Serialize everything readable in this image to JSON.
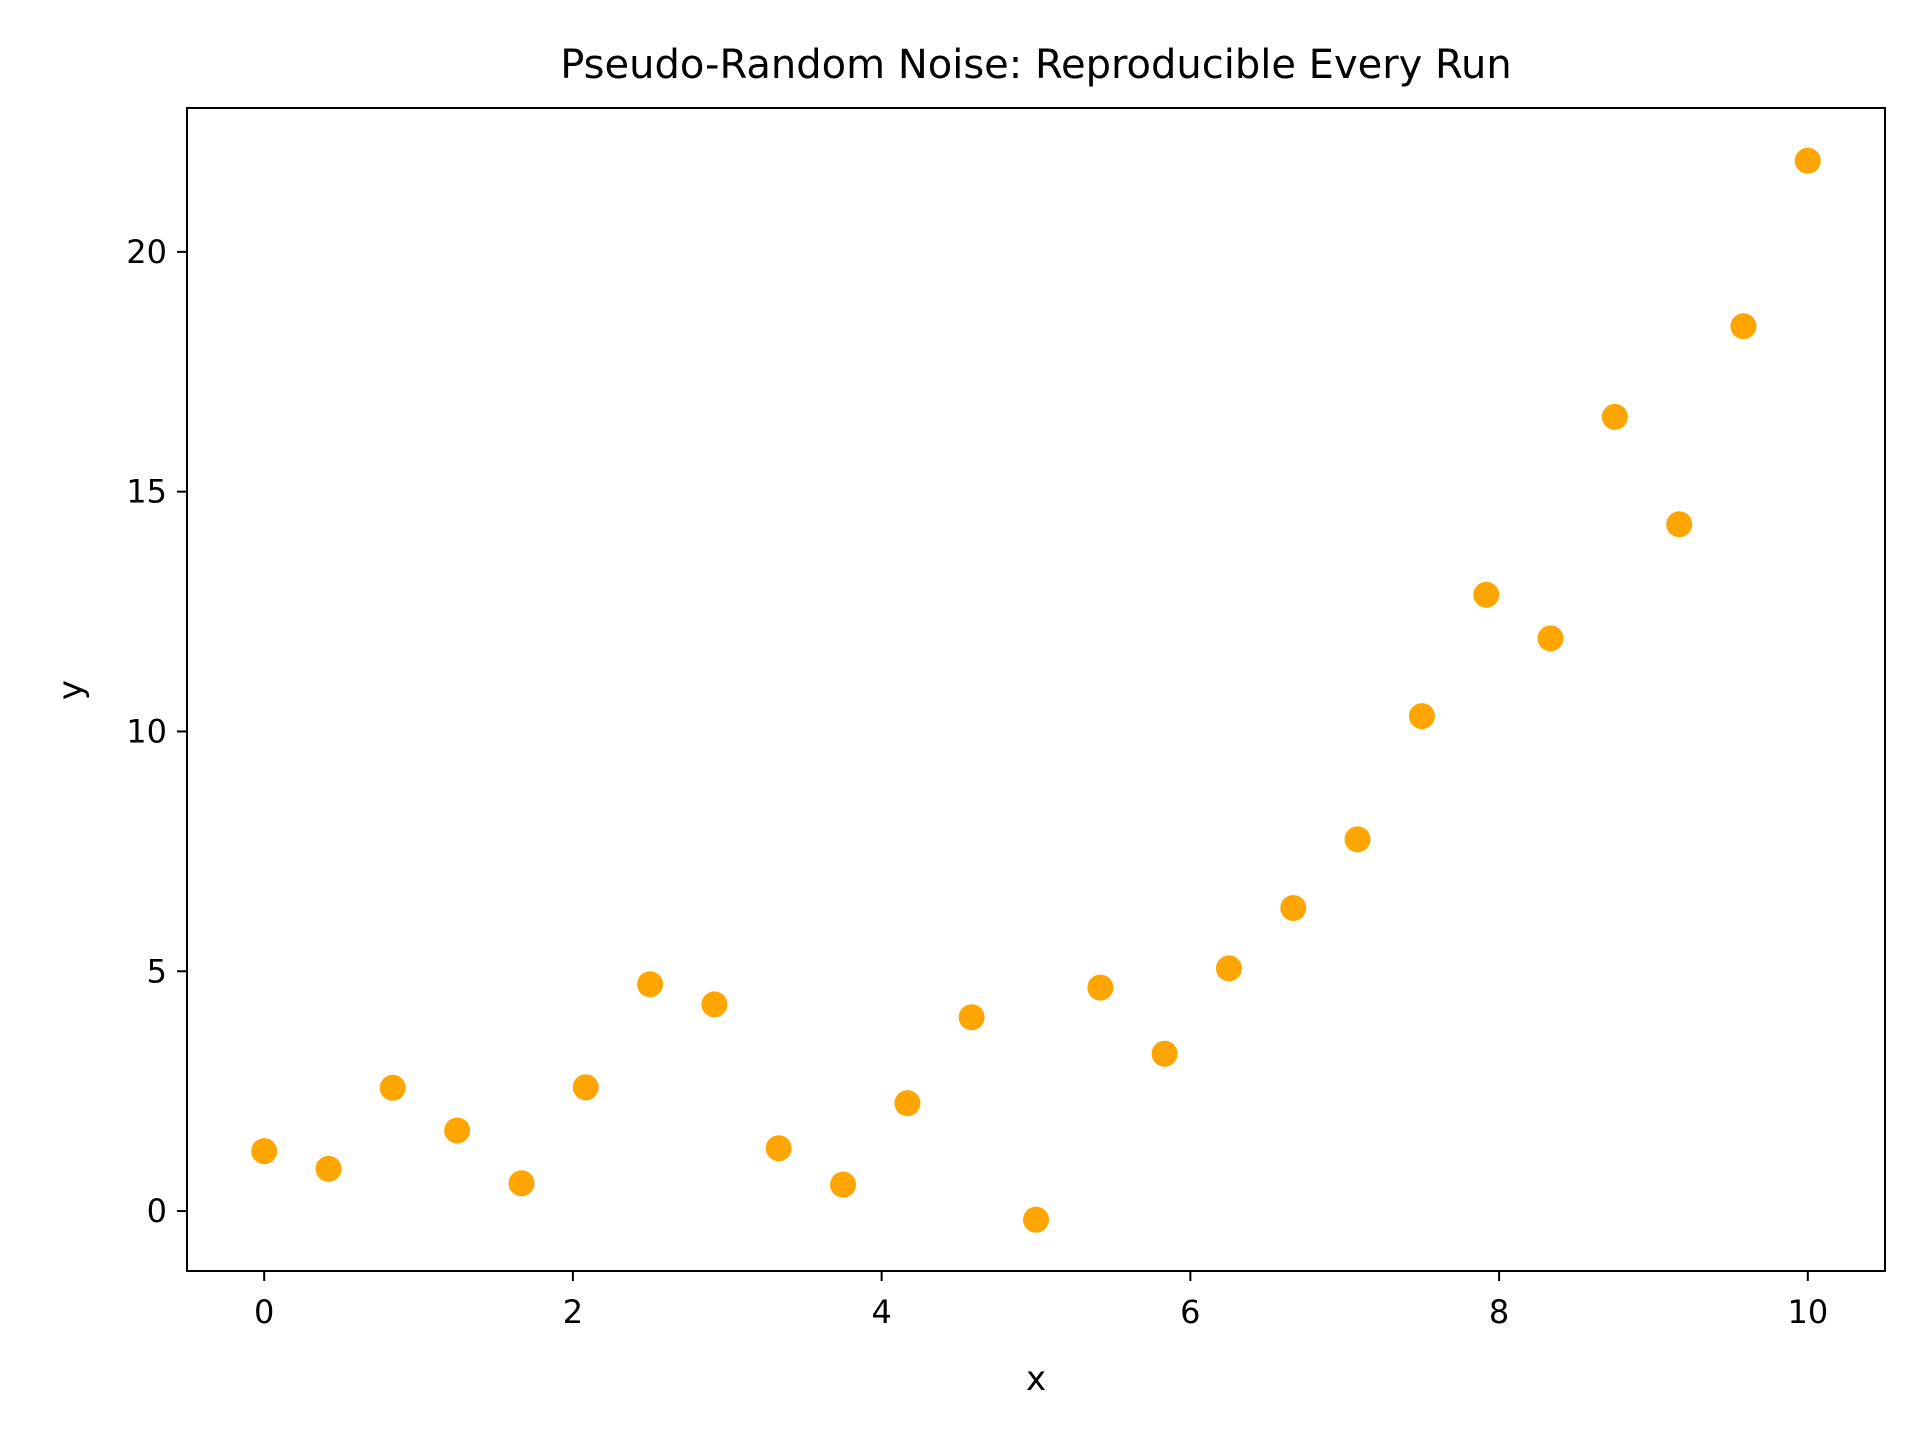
{
  "chart_data": {
    "type": "scatter",
    "title": "Pseudo-Random Noise: Reproducible Every Run",
    "xlabel": "x",
    "ylabel": "y",
    "xlim": [
      -0.5,
      10.5
    ],
    "ylim": [
      -1.25,
      23.0
    ],
    "xticks": [
      0,
      2,
      4,
      6,
      8,
      10
    ],
    "yticks": [
      0,
      5,
      10,
      15,
      20
    ],
    "grid": false,
    "marker_color": "#FFA500",
    "series": [
      {
        "x": [
          0.0,
          0.417,
          0.833,
          1.25,
          1.667,
          2.083,
          2.5,
          2.917,
          3.333,
          3.75,
          4.167,
          4.583,
          5.0,
          5.417,
          5.833,
          6.25,
          6.667,
          7.083,
          7.5,
          7.917,
          8.333,
          8.75,
          9.167,
          9.583,
          10.0
        ],
        "y": [
          1.25,
          0.88,
          2.57,
          1.68,
          0.58,
          2.58,
          4.73,
          4.31,
          1.31,
          0.55,
          2.25,
          4.04,
          -0.18,
          4.66,
          3.28,
          5.06,
          6.32,
          7.75,
          10.32,
          12.85,
          11.94,
          16.56,
          14.32,
          18.45,
          21.9
        ]
      }
    ]
  }
}
